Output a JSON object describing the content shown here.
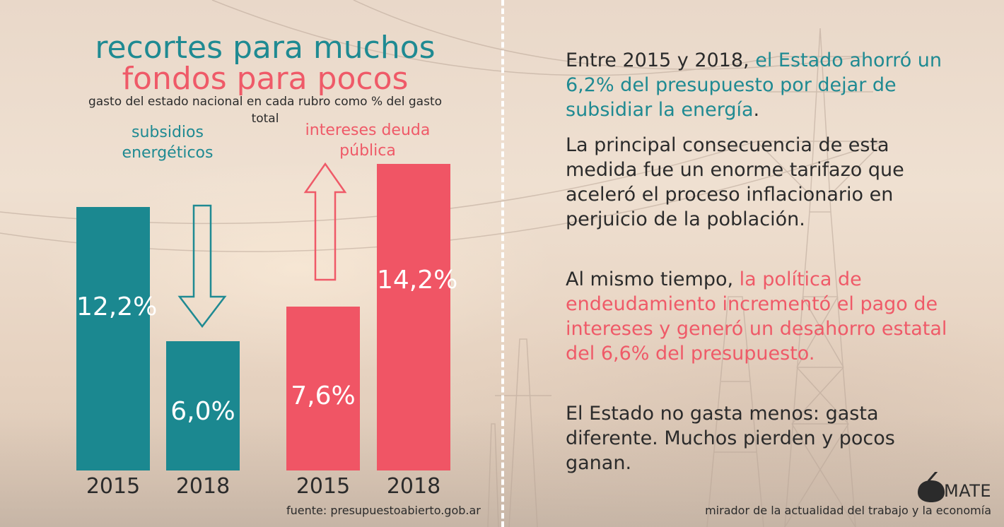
{
  "header": {
    "title_line1": "recortes para muchos",
    "title_line2": "fondos para pocos",
    "subtitle": "gasto del estado nacional en cada rubro como % del gasto total"
  },
  "chart_data": {
    "type": "bar",
    "title": "recortes para muchos fondos para pocos",
    "subtitle": "gasto del estado nacional en cada rubro como % del gasto total",
    "categories": [
      "2015",
      "2018"
    ],
    "series": [
      {
        "name": "subsidios energéticos",
        "values": [
          12.2,
          6.0
        ],
        "labels": [
          "12,2%",
          "6,0%"
        ],
        "color": "#1b8890",
        "trend": "down"
      },
      {
        "name": "intereses deuda pública",
        "values": [
          7.6,
          14.2
        ],
        "labels": [
          "7,6%",
          "14,2%"
        ],
        "color": "#f05565",
        "trend": "up"
      }
    ],
    "ylim": [
      0,
      14.2
    ],
    "grid": false,
    "legend": "none"
  },
  "source": "fuente: presupuestoabierto.gob.ar",
  "text_panel": {
    "p1_a": "Entre 2015 y 2018, ",
    "p1_b": "el Estado ahorró un 6,2% del presupuesto por dejar de subsidiar la energía",
    "p1_c": ".",
    "p2": "La principal consecuencia de esta medida fue un enorme tarifazo que aceleró el proceso inflacionario en perjuicio de la población.",
    "p3_a": "Al mismo tiempo, ",
    "p3_b": "la política de endeudamiento incrementó el pago de intereses y generó un desahorro estatal del 6,6% del presupuesto.",
    "p4": "El Estado no gasta menos: gasta diferente. Muchos pierden y pocos ganan."
  },
  "branding": {
    "logo_text": "MATE",
    "tagline": "mirador de la actualidad del trabajo y la economía"
  }
}
